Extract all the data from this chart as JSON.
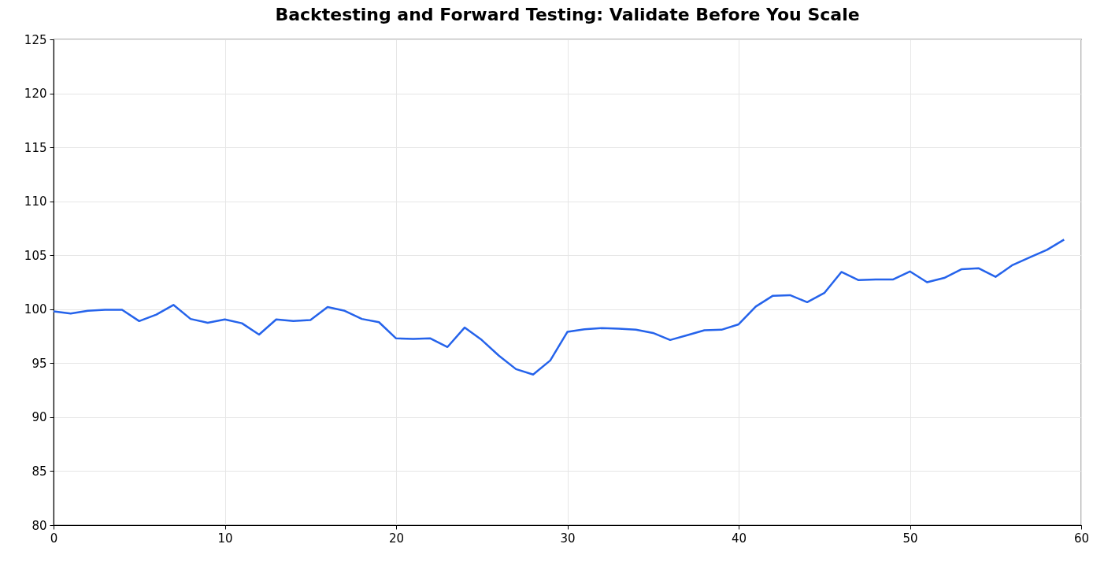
{
  "chart_data": {
    "type": "line",
    "title": "Backtesting and Forward Testing: Validate Before You Scale",
    "x": [
      0,
      1,
      2,
      3,
      4,
      5,
      6,
      7,
      8,
      9,
      10,
      11,
      12,
      13,
      14,
      15,
      16,
      17,
      18,
      19,
      20,
      21,
      22,
      23,
      24,
      25,
      26,
      27,
      28,
      29,
      30,
      31,
      32,
      33,
      34,
      35,
      36,
      37,
      38,
      39,
      40,
      41,
      42,
      43,
      44,
      45,
      46,
      47,
      48,
      49,
      50,
      51,
      52,
      53,
      54,
      55,
      56,
      57,
      58,
      59
    ],
    "series": [
      {
        "color": "#2563eb",
        "values": [
          99.8,
          99.6,
          99.85,
          99.95,
          99.95,
          98.9,
          99.5,
          100.4,
          99.1,
          98.75,
          99.05,
          98.7,
          97.65,
          99.05,
          98.9,
          99.0,
          100.2,
          99.85,
          99.1,
          98.8,
          97.3,
          97.25,
          97.3,
          96.5,
          98.3,
          97.15,
          95.7,
          94.45,
          93.95,
          95.25,
          97.9,
          98.15,
          98.25,
          98.2,
          98.1,
          97.8,
          97.15,
          97.6,
          98.05,
          98.1,
          98.6,
          100.25,
          101.25,
          101.3,
          100.65,
          101.5,
          103.45,
          102.7,
          102.75,
          102.75,
          103.5,
          102.5,
          102.9,
          103.7,
          103.8,
          103.0,
          104.1,
          104.8,
          105.5,
          106.45
        ]
      }
    ],
    "xlim": [
      0,
      60
    ],
    "ylim": [
      80,
      125
    ],
    "xticks": [
      0,
      10,
      20,
      30,
      40,
      50,
      60
    ],
    "yticks": [
      80,
      85,
      90,
      95,
      100,
      105,
      110,
      115,
      120,
      125
    ],
    "grid": true,
    "marker": "none",
    "line_style": "solid"
  }
}
